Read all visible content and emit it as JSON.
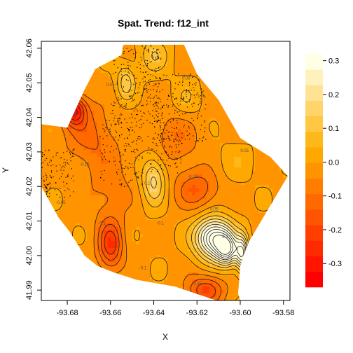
{
  "chart_data": {
    "type": "heatmap",
    "title": "Spat. Trend: f12_int",
    "xlabel": "X",
    "ylabel": "Y",
    "xlim": [
      -93.692,
      -93.577
    ],
    "ylim": [
      41.987,
      42.062
    ],
    "x_ticks": [
      -93.68,
      -93.66,
      -93.64,
      -93.62,
      -93.6,
      -93.58
    ],
    "x_tick_labels": [
      "-93.68",
      "-93.66",
      "-93.64",
      "-93.62",
      "-93.60",
      "-93.58"
    ],
    "y_ticks": [
      41.99,
      42.0,
      42.01,
      42.02,
      42.03,
      42.04,
      42.05,
      42.06
    ],
    "y_tick_labels": [
      "41.99",
      "42.00",
      "42.01",
      "42.02",
      "42.03",
      "42.04",
      "42.05",
      "42.06"
    ],
    "colorbar": {
      "min": -0.37,
      "max": 0.32,
      "ticks": [
        0.3,
        0.2,
        0.1,
        0.0,
        -0.1,
        -0.2,
        -0.3
      ],
      "tick_labels": [
        "0.3",
        "0.2",
        "0.1",
        "0.0",
        "-0.1",
        "-0.2",
        "-0.3"
      ],
      "low_color": "#ff0000",
      "mid_color": "#ffb000",
      "high_color": "#ffffe6"
    },
    "boundary": [
      [
        -93.692,
        42.038
      ],
      [
        -93.68,
        42.037
      ],
      [
        -93.672,
        42.048
      ],
      [
        -93.667,
        42.054
      ],
      [
        -93.655,
        42.058
      ],
      [
        -93.654,
        42.061
      ],
      [
        -93.64,
        42.061
      ],
      [
        -93.626,
        42.061
      ],
      [
        -93.62,
        42.0525
      ],
      [
        -93.61,
        42.045
      ],
      [
        -93.6,
        42.034
      ],
      [
        -93.586,
        42.0285
      ],
      [
        -93.578,
        42.023
      ],
      [
        -93.596,
        42.004
      ],
      [
        -93.6,
        41.997
      ],
      [
        -93.601,
        41.989
      ],
      [
        -93.6,
        41.987
      ],
      [
        -93.611,
        41.987
      ],
      [
        -93.63,
        41.991
      ],
      [
        -93.648,
        41.993
      ],
      [
        -93.658,
        41.995
      ],
      [
        -93.666,
        41.997
      ],
      [
        -93.672,
        42.0
      ],
      [
        -93.679,
        42.007
      ],
      [
        -93.684,
        42.011
      ],
      [
        -93.692,
        42.02
      ]
    ],
    "features": [
      {
        "x": -93.606,
        "y": 42.0015,
        "amp": 0.34,
        "sx": 0.0035,
        "sy": 0.003
      },
      {
        "x": -93.612,
        "y": 42.005,
        "amp": 0.45,
        "sx": 0.006,
        "sy": 0.004
      },
      {
        "x": -93.599,
        "y": 42.0005,
        "amp": 0.32,
        "sx": 0.002,
        "sy": 0.0035
      },
      {
        "x": -93.64,
        "y": 42.022,
        "amp": 0.18,
        "sx": 0.004,
        "sy": 0.005
      },
      {
        "x": -93.653,
        "y": 42.05,
        "amp": 0.14,
        "sx": 0.003,
        "sy": 0.0035
      },
      {
        "x": -93.64,
        "y": 42.058,
        "amp": 0.1,
        "sx": 0.005,
        "sy": 0.004
      },
      {
        "x": -93.625,
        "y": 42.045,
        "amp": 0.06,
        "sx": 0.005,
        "sy": 0.004
      },
      {
        "x": -93.602,
        "y": 42.027,
        "amp": 0.04,
        "sx": 0.006,
        "sy": 0.004
      },
      {
        "x": -93.677,
        "y": 42.042,
        "amp": -0.27,
        "sx": 0.004,
        "sy": 0.003
      },
      {
        "x": -93.67,
        "y": 42.035,
        "amp": -0.1,
        "sx": 0.008,
        "sy": 0.006
      },
      {
        "x": -93.66,
        "y": 42.003,
        "amp": -0.22,
        "sx": 0.004,
        "sy": 0.005
      },
      {
        "x": -93.62,
        "y": 42.019,
        "amp": -0.13,
        "sx": 0.007,
        "sy": 0.004
      },
      {
        "x": -93.616,
        "y": 41.99,
        "amp": -0.18,
        "sx": 0.006,
        "sy": 0.003
      },
      {
        "x": -93.63,
        "y": 42.034,
        "amp": -0.08,
        "sx": 0.008,
        "sy": 0.006
      },
      {
        "x": -93.66,
        "y": 42.02,
        "amp": -0.06,
        "sx": 0.008,
        "sy": 0.008
      }
    ],
    "base_value": -0.01,
    "contour_step": 0.05
  }
}
